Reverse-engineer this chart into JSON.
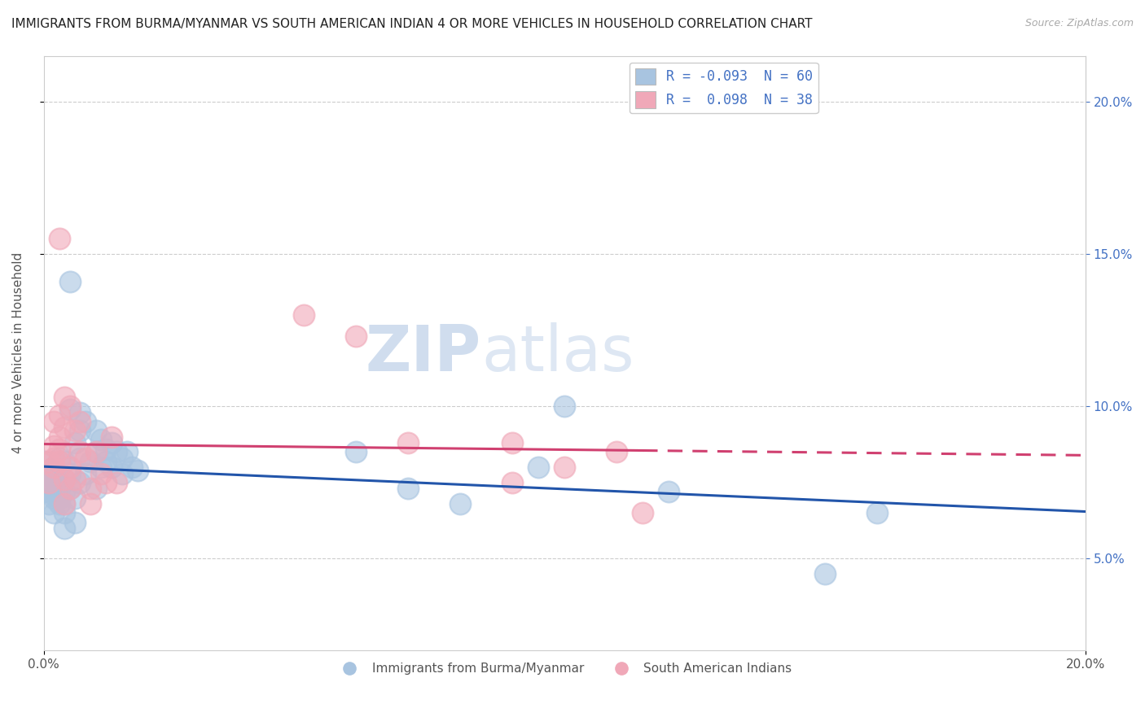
{
  "title": "IMMIGRANTS FROM BURMA/MYANMAR VS SOUTH AMERICAN INDIAN 4 OR MORE VEHICLES IN HOUSEHOLD CORRELATION CHART",
  "source": "Source: ZipAtlas.com",
  "ylabel": "4 or more Vehicles in Household",
  "xlim": [
    0.0,
    0.2
  ],
  "ylim": [
    0.02,
    0.215
  ],
  "xtick_vals": [
    0.0,
    0.2
  ],
  "xtick_labels": [
    "0.0%",
    "20.0%"
  ],
  "ytick_vals": [
    0.05,
    0.1,
    0.15,
    0.2
  ],
  "ytick_labels": [
    "5.0%",
    "10.0%",
    "15.0%",
    "20.0%"
  ],
  "legend1_label": "R = -0.093  N = 60",
  "legend2_label": "R =  0.098  N = 38",
  "legend_bottom1": "Immigrants from Burma/Myanmar",
  "legend_bottom2": "South American Indians",
  "watermark_zip": "ZIP",
  "watermark_atlas": "atlas",
  "blue_color": "#a8c4e0",
  "pink_color": "#f0a8b8",
  "blue_line_color": "#2255aa",
  "pink_line_color": "#d04070",
  "blue_scatter": [
    [
      0.0,
      0.082
    ],
    [
      0.0,
      0.072
    ],
    [
      0.001,
      0.075
    ],
    [
      0.001,
      0.068
    ],
    [
      0.001,
      0.079
    ],
    [
      0.001,
      0.073
    ],
    [
      0.002,
      0.071
    ],
    [
      0.002,
      0.08
    ],
    [
      0.002,
      0.076
    ],
    [
      0.002,
      0.07
    ],
    [
      0.002,
      0.065
    ],
    [
      0.002,
      0.078
    ],
    [
      0.003,
      0.083
    ],
    [
      0.003,
      0.075
    ],
    [
      0.003,
      0.07
    ],
    [
      0.003,
      0.068
    ],
    [
      0.003,
      0.073
    ],
    [
      0.004,
      0.082
    ],
    [
      0.004,
      0.076
    ],
    [
      0.004,
      0.068
    ],
    [
      0.004,
      0.072
    ],
    [
      0.004,
      0.065
    ],
    [
      0.004,
      0.06
    ],
    [
      0.005,
      0.141
    ],
    [
      0.005,
      0.099
    ],
    [
      0.005,
      0.078
    ],
    [
      0.005,
      0.073
    ],
    [
      0.006,
      0.088
    ],
    [
      0.006,
      0.07
    ],
    [
      0.006,
      0.062
    ],
    [
      0.007,
      0.098
    ],
    [
      0.007,
      0.092
    ],
    [
      0.007,
      0.083
    ],
    [
      0.007,
      0.075
    ],
    [
      0.008,
      0.095
    ],
    [
      0.008,
      0.078
    ],
    [
      0.009,
      0.082
    ],
    [
      0.01,
      0.092
    ],
    [
      0.01,
      0.085
    ],
    [
      0.01,
      0.073
    ],
    [
      0.011,
      0.089
    ],
    [
      0.011,
      0.08
    ],
    [
      0.012,
      0.086
    ],
    [
      0.012,
      0.082
    ],
    [
      0.013,
      0.088
    ],
    [
      0.013,
      0.08
    ],
    [
      0.014,
      0.085
    ],
    [
      0.015,
      0.083
    ],
    [
      0.015,
      0.078
    ],
    [
      0.016,
      0.085
    ],
    [
      0.017,
      0.08
    ],
    [
      0.018,
      0.079
    ],
    [
      0.06,
      0.085
    ],
    [
      0.07,
      0.073
    ],
    [
      0.08,
      0.068
    ],
    [
      0.095,
      0.08
    ],
    [
      0.1,
      0.1
    ],
    [
      0.12,
      0.072
    ],
    [
      0.15,
      0.045
    ],
    [
      0.16,
      0.065
    ]
  ],
  "pink_scatter": [
    [
      0.001,
      0.082
    ],
    [
      0.001,
      0.075
    ],
    [
      0.002,
      0.095
    ],
    [
      0.002,
      0.087
    ],
    [
      0.002,
      0.083
    ],
    [
      0.002,
      0.08
    ],
    [
      0.003,
      0.155
    ],
    [
      0.003,
      0.097
    ],
    [
      0.003,
      0.09
    ],
    [
      0.003,
      0.086
    ],
    [
      0.003,
      0.082
    ],
    [
      0.004,
      0.103
    ],
    [
      0.004,
      0.093
    ],
    [
      0.004,
      0.076
    ],
    [
      0.004,
      0.068
    ],
    [
      0.005,
      0.1
    ],
    [
      0.005,
      0.08
    ],
    [
      0.005,
      0.073
    ],
    [
      0.006,
      0.092
    ],
    [
      0.006,
      0.076
    ],
    [
      0.007,
      0.095
    ],
    [
      0.007,
      0.085
    ],
    [
      0.008,
      0.083
    ],
    [
      0.009,
      0.073
    ],
    [
      0.009,
      0.068
    ],
    [
      0.01,
      0.085
    ],
    [
      0.011,
      0.078
    ],
    [
      0.012,
      0.075
    ],
    [
      0.013,
      0.09
    ],
    [
      0.014,
      0.075
    ],
    [
      0.05,
      0.13
    ],
    [
      0.06,
      0.123
    ],
    [
      0.07,
      0.088
    ],
    [
      0.09,
      0.088
    ],
    [
      0.09,
      0.075
    ],
    [
      0.1,
      0.08
    ],
    [
      0.11,
      0.085
    ],
    [
      0.115,
      0.065
    ]
  ],
  "background_color": "#ffffff",
  "grid_color": "#cccccc",
  "title_fontsize": 11,
  "axis_label_fontsize": 11,
  "tick_fontsize": 11,
  "right_tick_color": "#4472c4"
}
